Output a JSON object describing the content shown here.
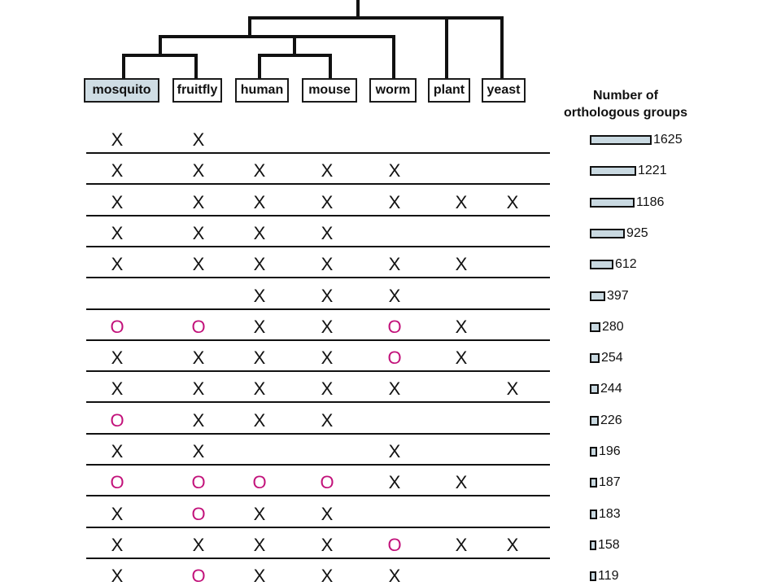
{
  "taxa": [
    "mosquito",
    "fruitfly",
    "human",
    "mouse",
    "worm",
    "plant",
    "yeast"
  ],
  "highlighted_taxon": "mosquito",
  "count_header": [
    "Number of",
    "orthologous groups"
  ],
  "bar_color": "#c9d9e1",
  "o_color": "#c2117a",
  "rows": [
    {
      "marks": [
        "X",
        "X",
        "",
        "",
        "",
        "",
        ""
      ],
      "count": 1625
    },
    {
      "marks": [
        "X",
        "X",
        "X",
        "X",
        "X",
        "",
        ""
      ],
      "count": 1221
    },
    {
      "marks": [
        "X",
        "X",
        "X",
        "X",
        "X",
        "X",
        "X"
      ],
      "count": 1186
    },
    {
      "marks": [
        "X",
        "X",
        "X",
        "X",
        "",
        "",
        ""
      ],
      "count": 925
    },
    {
      "marks": [
        "X",
        "X",
        "X",
        "X",
        "X",
        "X",
        ""
      ],
      "count": 612
    },
    {
      "marks": [
        "",
        "",
        "X",
        "X",
        "X",
        "",
        ""
      ],
      "count": 397
    },
    {
      "marks": [
        "O",
        "O",
        "X",
        "X",
        "O",
        "X",
        ""
      ],
      "count": 280
    },
    {
      "marks": [
        "X",
        "X",
        "X",
        "X",
        "O",
        "X",
        ""
      ],
      "count": 254
    },
    {
      "marks": [
        "X",
        "X",
        "X",
        "X",
        "X",
        "",
        "X"
      ],
      "count": 244
    },
    {
      "marks": [
        "O",
        "X",
        "X",
        "X",
        "",
        "",
        ""
      ],
      "count": 226
    },
    {
      "marks": [
        "X",
        "X",
        "",
        "",
        "X",
        "",
        ""
      ],
      "count": 196
    },
    {
      "marks": [
        "O",
        "O",
        "O",
        "O",
        "X",
        "X",
        ""
      ],
      "count": 187
    },
    {
      "marks": [
        "X",
        "O",
        "X",
        "X",
        "",
        "",
        ""
      ],
      "count": 183
    },
    {
      "marks": [
        "X",
        "X",
        "X",
        "X",
        "O",
        "X",
        "X"
      ],
      "count": 158
    },
    {
      "marks": [
        "X",
        "O",
        "X",
        "X",
        "X",
        "",
        ""
      ],
      "count": 119
    }
  ]
}
